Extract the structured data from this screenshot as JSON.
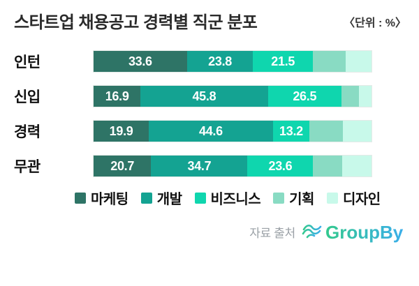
{
  "header": {
    "title": "스타트업 채용공고 경력별 직군 분포",
    "unit_label": "〈단위 : %〉"
  },
  "chart_data": {
    "type": "bar",
    "orientation": "horizontal-stacked",
    "unit": "%",
    "xlim": [
      0,
      100
    ],
    "title": "스타트업 채용공고 경력별 직군 분포",
    "legend_position": "bottom",
    "categories": [
      "인턴",
      "신입",
      "경력",
      "무관"
    ],
    "series": [
      {
        "name": "마케팅",
        "color": "#2E7466",
        "label_shown": true,
        "values": [
          33.6,
          16.9,
          19.9,
          20.7
        ]
      },
      {
        "name": "개발",
        "color": "#14A392",
        "label_shown": true,
        "values": [
          23.8,
          45.8,
          44.6,
          34.7
        ]
      },
      {
        "name": "비즈니스",
        "color": "#0FD6AE",
        "label_shown": true,
        "values": [
          21.5,
          26.5,
          13.2,
          23.6
        ]
      },
      {
        "name": "기획",
        "color": "#89DBC3",
        "label_shown": false,
        "values": [
          11.8,
          6.3,
          11.9,
          10.4
        ]
      },
      {
        "name": "디자인",
        "color": "#C8F9EA",
        "label_shown": false,
        "values": [
          9.3,
          4.5,
          10.4,
          10.6
        ]
      }
    ]
  },
  "footer": {
    "source_label": "자료 출처",
    "logo_text": "GroupBy",
    "logo_gradient_start": "#34C98E",
    "logo_gradient_end": "#3AAEEA"
  }
}
